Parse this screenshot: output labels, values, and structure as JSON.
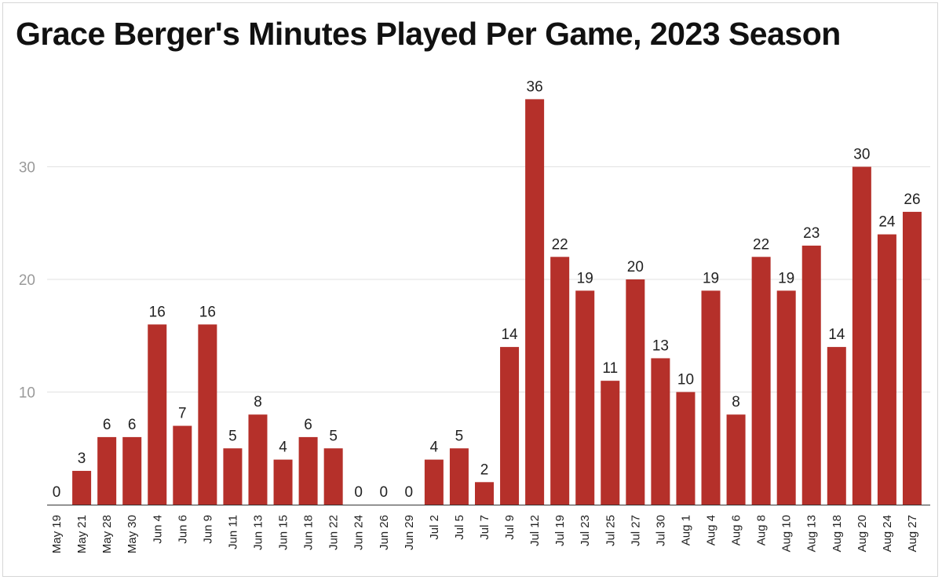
{
  "chart_data": {
    "type": "bar",
    "title": "Grace Berger's Minutes Played Per Game, 2023 Season",
    "xlabel": "",
    "ylabel": "",
    "ylim": [
      0,
      38
    ],
    "yticks": [
      10,
      20,
      30
    ],
    "grid": true,
    "bar_color": "#b5302a",
    "categories": [
      "May 19",
      "May 21",
      "May 28",
      "May 30",
      "Jun 4",
      "Jun 6",
      "Jun 9",
      "Jun 11",
      "Jun 13",
      "Jun 15",
      "Jun 18",
      "Jun 22",
      "Jun 24",
      "Jun 26",
      "Jun 29",
      "Jul 2",
      "Jul 5",
      "Jul 7",
      "Jul 9",
      "Jul 12",
      "Jul 19",
      "Jul 23",
      "Jul 25",
      "Jul 27",
      "Jul 30",
      "Aug 1",
      "Aug 4",
      "Aug 6",
      "Aug 8",
      "Aug 10",
      "Aug 13",
      "Aug 18",
      "Aug 20",
      "Aug 24",
      "Aug 27"
    ],
    "values": [
      0,
      3,
      6,
      6,
      16,
      7,
      16,
      5,
      8,
      4,
      6,
      5,
      0,
      0,
      0,
      4,
      5,
      2,
      14,
      36,
      22,
      19,
      11,
      20,
      13,
      10,
      19,
      8,
      22,
      19,
      23,
      14,
      30,
      24,
      26
    ]
  }
}
